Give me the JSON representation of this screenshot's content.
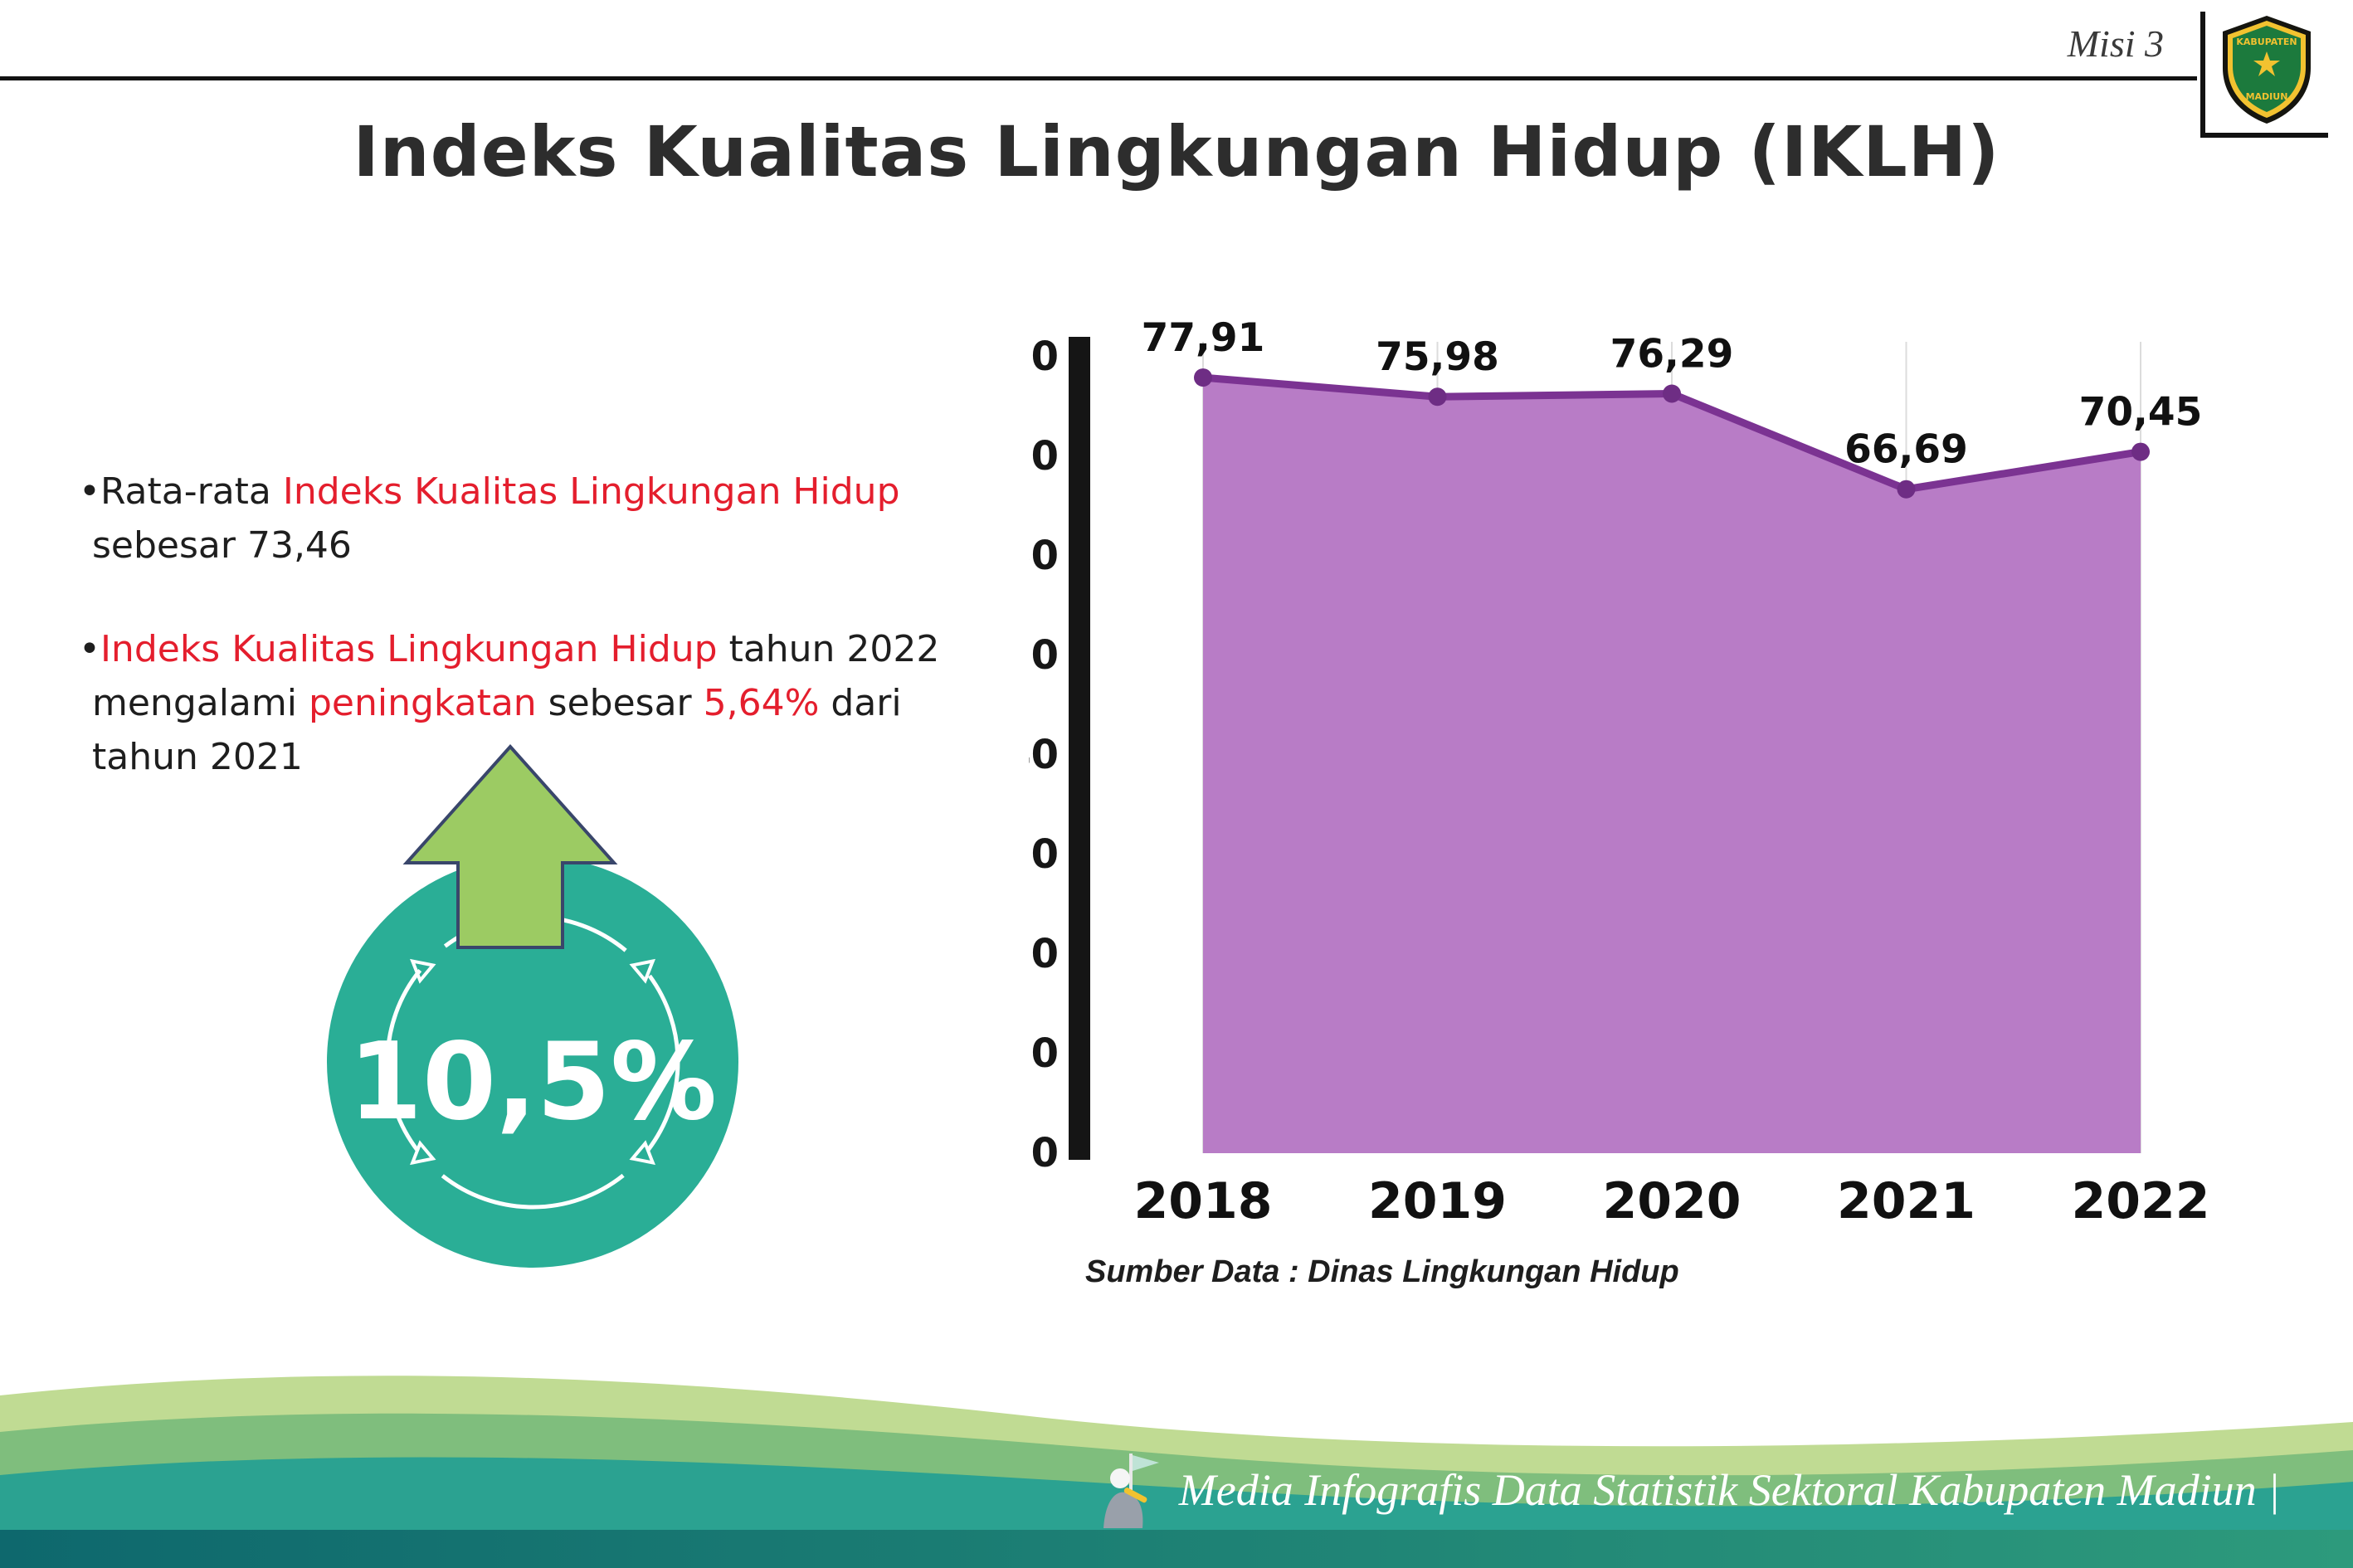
{
  "header": {
    "misi": "Misi 3",
    "title": "Indeks Kualitas Lingkungan Hidup (IKLH)",
    "logo_top": "KABUPATEN",
    "logo_bottom": "MADIUN"
  },
  "bullets": {
    "marker": "•",
    "b1": {
      "s0": "Rata-rata ",
      "s1": "Indeks Kualitas Lingkungan Hidup",
      "s2": " sebesar 73,46"
    },
    "b2": {
      "s0": "Indeks Kualitas Lingkungan Hidup",
      "s1": " tahun 2022 mengalami ",
      "s2": "peningkatan",
      "s3": " sebesar ",
      "s4": "5,64%",
      "s5": " dari tahun 2021"
    }
  },
  "badge": {
    "value": "10,5%",
    "circle_color": "#2AAE96",
    "arrow_color": "#9CCB63"
  },
  "chart_data": {
    "type": "area",
    "categories": [
      "2018",
      "2019",
      "2020",
      "2021",
      "2022"
    ],
    "values": [
      77.91,
      75.98,
      76.29,
      66.69,
      70.45
    ],
    "value_labels": [
      "77,91",
      "75,98",
      "76,29",
      "66,69",
      "70,45"
    ],
    "title": "",
    "xlabel": "",
    "ylabel": "",
    "ylim": [
      0,
      80
    ],
    "ytick_step": 10,
    "grid": "vertical-faint",
    "legend": "none",
    "area_color": "#B87CC6",
    "line_color": "#7B3392",
    "point_color": "#6E2D84",
    "source_note": "Sumber Data : Dinas Lingkungan Hidup"
  },
  "footer": {
    "credit": "Media Infografis Data Statistik Sektoral Kabupaten Madiun |"
  }
}
